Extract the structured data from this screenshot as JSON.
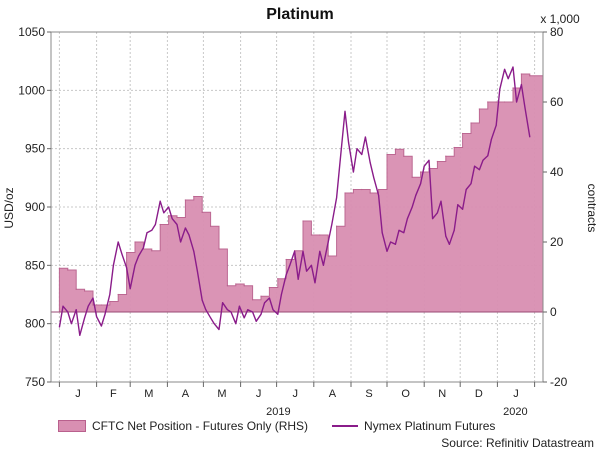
{
  "chart_data": {
    "type": "area",
    "title": "Platinum",
    "ylabel": "USD/oz",
    "y2label": "contracts",
    "y2multiplier": "x 1,000",
    "ylim": [
      750,
      1050
    ],
    "yticks": [
      750,
      800,
      850,
      900,
      950,
      1000,
      1050
    ],
    "y2lim": [
      -20,
      80
    ],
    "y2ticks": [
      -20,
      0,
      20,
      40,
      60,
      80
    ],
    "x_month_labels": [
      "J",
      "F",
      "M",
      "A",
      "M",
      "J",
      "J",
      "A",
      "S",
      "O",
      "N",
      "D",
      "J"
    ],
    "year_labels": [
      {
        "label": "2019"
      },
      {
        "label": "2020"
      }
    ],
    "grid": true,
    "legend": "bottom-left",
    "colors": {
      "area": "#d98fb2",
      "area_edge": "#b9608d",
      "line": "#8a1c8a",
      "grid": "#c8c8c8"
    },
    "series": [
      {
        "name": "CFTC Net Position - Futures Only (RHS)",
        "axis": "right",
        "type": "area",
        "x": [
          "2019-01-01",
          "2019-01-08",
          "2019-01-15",
          "2019-01-22",
          "2019-01-29",
          "2019-02-05",
          "2019-02-12",
          "2019-02-19",
          "2019-02-26",
          "2019-03-05",
          "2019-03-12",
          "2019-03-19",
          "2019-03-26",
          "2019-04-02",
          "2019-04-09",
          "2019-04-16",
          "2019-04-23",
          "2019-04-30",
          "2019-05-07",
          "2019-05-14",
          "2019-05-21",
          "2019-05-28",
          "2019-06-04",
          "2019-06-11",
          "2019-06-18",
          "2019-06-25",
          "2019-07-02",
          "2019-07-09",
          "2019-07-16",
          "2019-07-23",
          "2019-07-30",
          "2019-08-06",
          "2019-08-13",
          "2019-08-20",
          "2019-08-27",
          "2019-09-03",
          "2019-09-10",
          "2019-09-17",
          "2019-09-24",
          "2019-10-01",
          "2019-10-08",
          "2019-10-15",
          "2019-10-22",
          "2019-10-29",
          "2019-11-05",
          "2019-11-12",
          "2019-11-19",
          "2019-11-26",
          "2019-12-03",
          "2019-12-10",
          "2019-12-17",
          "2019-12-24",
          "2019-12-31",
          "2020-01-07",
          "2020-01-14",
          "2020-01-21",
          "2020-01-28"
        ],
        "values": [
          12.5,
          12,
          6.5,
          6,
          2,
          2,
          3,
          5,
          17,
          20,
          18,
          17.5,
          25,
          27.5,
          27,
          32,
          33,
          28.5,
          24.5,
          18,
          7.5,
          8,
          7.5,
          3.5,
          4.5,
          7,
          9.5,
          15,
          17.5,
          26,
          22,
          22,
          16,
          24.5,
          34,
          35,
          35,
          34,
          35,
          45,
          46.5,
          44.5,
          38.5,
          40,
          41,
          43,
          44.5,
          47,
          51,
          54,
          58,
          60,
          60,
          60,
          64,
          68,
          67.5
        ]
      },
      {
        "name": "Nymex Platinum Futures",
        "axis": "left",
        "type": "line",
        "x": [
          "2019-01-01",
          "2019-01-04",
          "2019-01-08",
          "2019-01-11",
          "2019-01-15",
          "2019-01-18",
          "2019-01-22",
          "2019-01-25",
          "2019-01-29",
          "2019-02-01",
          "2019-02-05",
          "2019-02-08",
          "2019-02-12",
          "2019-02-15",
          "2019-02-19",
          "2019-02-22",
          "2019-02-26",
          "2019-03-01",
          "2019-03-05",
          "2019-03-08",
          "2019-03-12",
          "2019-03-15",
          "2019-03-19",
          "2019-03-22",
          "2019-03-26",
          "2019-03-29",
          "2019-04-02",
          "2019-04-05",
          "2019-04-09",
          "2019-04-12",
          "2019-04-16",
          "2019-04-19",
          "2019-04-23",
          "2019-04-26",
          "2019-04-30",
          "2019-05-03",
          "2019-05-07",
          "2019-05-10",
          "2019-05-14",
          "2019-05-17",
          "2019-05-21",
          "2019-05-24",
          "2019-05-28",
          "2019-05-31",
          "2019-06-04",
          "2019-06-07",
          "2019-06-11",
          "2019-06-14",
          "2019-06-18",
          "2019-06-21",
          "2019-06-25",
          "2019-06-28",
          "2019-07-02",
          "2019-07-05",
          "2019-07-09",
          "2019-07-12",
          "2019-07-16",
          "2019-07-19",
          "2019-07-23",
          "2019-07-26",
          "2019-07-30",
          "2019-08-02",
          "2019-08-06",
          "2019-08-09",
          "2019-08-13",
          "2019-08-16",
          "2019-08-20",
          "2019-08-23",
          "2019-08-27",
          "2019-08-30",
          "2019-09-03",
          "2019-09-06",
          "2019-09-10",
          "2019-09-13",
          "2019-09-17",
          "2019-09-20",
          "2019-09-24",
          "2019-09-27",
          "2019-10-01",
          "2019-10-04",
          "2019-10-08",
          "2019-10-11",
          "2019-10-15",
          "2019-10-18",
          "2019-10-22",
          "2019-10-25",
          "2019-10-29",
          "2019-11-01",
          "2019-11-05",
          "2019-11-08",
          "2019-11-12",
          "2019-11-15",
          "2019-11-19",
          "2019-11-22",
          "2019-11-26",
          "2019-11-29",
          "2019-12-03",
          "2019-12-06",
          "2019-12-10",
          "2019-12-13",
          "2019-12-17",
          "2019-12-20",
          "2019-12-24",
          "2019-12-27",
          "2019-12-31",
          "2020-01-03",
          "2020-01-07",
          "2020-01-10",
          "2020-01-14",
          "2020-01-17",
          "2020-01-21",
          "2020-01-24",
          "2020-01-28"
        ],
        "values": [
          797,
          815,
          810,
          800,
          812,
          790,
          805,
          815,
          822,
          806,
          798,
          808,
          825,
          850,
          870,
          860,
          848,
          830,
          850,
          858,
          865,
          878,
          880,
          885,
          905,
          895,
          900,
          890,
          885,
          870,
          882,
          876,
          862,
          845,
          820,
          812,
          805,
          800,
          795,
          818,
          812,
          810,
          800,
          815,
          805,
          812,
          810,
          802,
          808,
          818,
          822,
          812,
          808,
          825,
          842,
          850,
          862,
          838,
          862,
          845,
          850,
          835,
          862,
          850,
          870,
          885,
          908,
          940,
          982,
          955,
          930,
          950,
          945,
          960,
          938,
          925,
          910,
          878,
          862,
          870,
          868,
          880,
          878,
          890,
          900,
          910,
          920,
          935,
          940,
          890,
          895,
          905,
          875,
          868,
          880,
          902,
          898,
          915,
          920,
          935,
          932,
          940,
          944,
          958,
          970,
          1001,
          1018,
          1010,
          1020,
          990,
          1005,
          985,
          960
        ]
      }
    ]
  },
  "source": "Source: Refinitiv Datastream"
}
